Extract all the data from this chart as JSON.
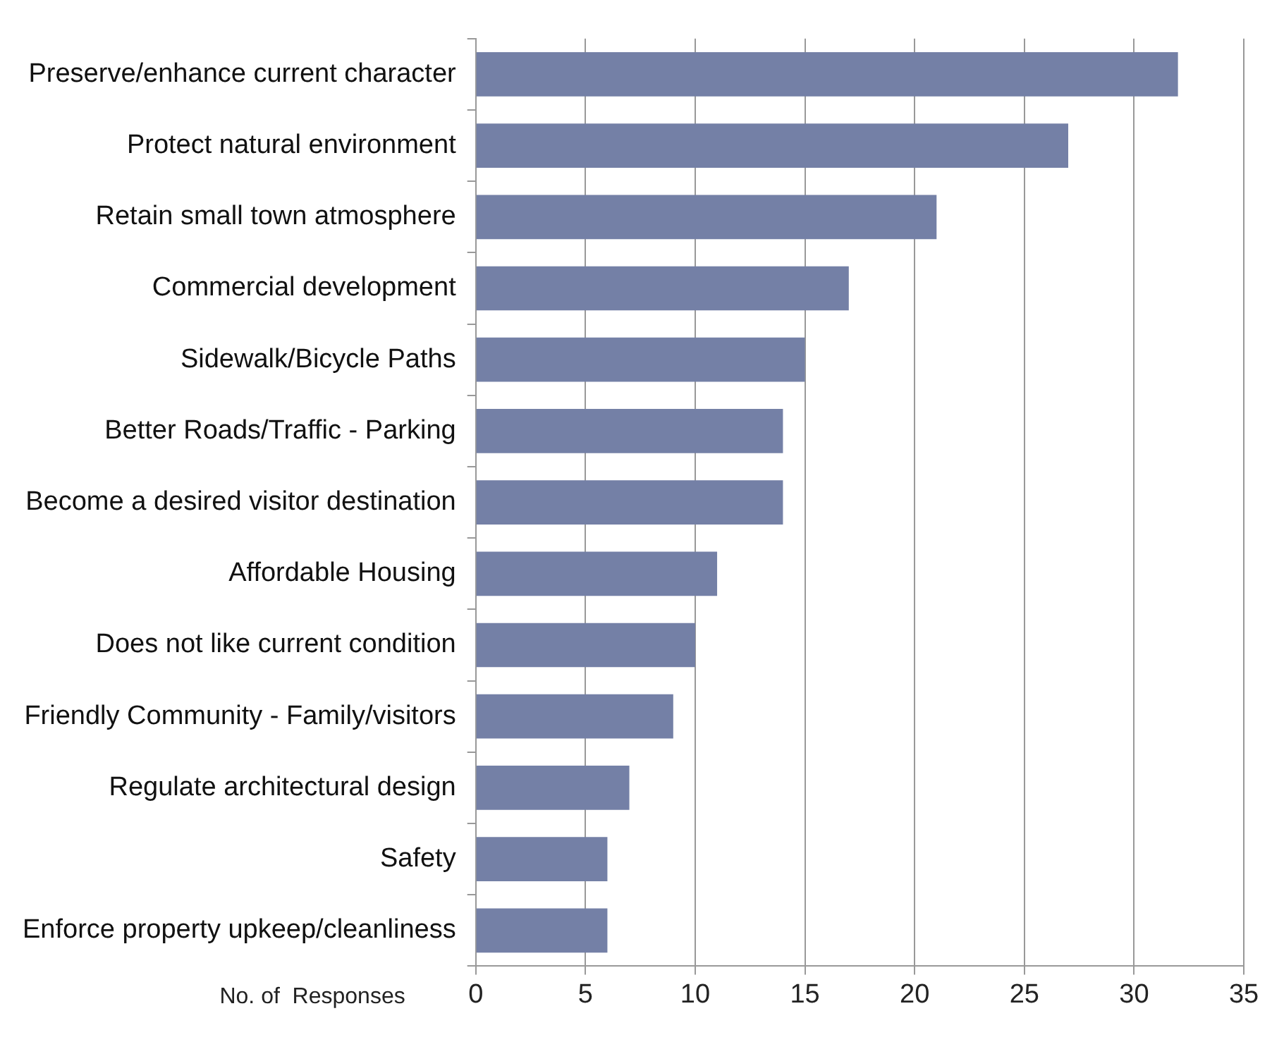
{
  "chart_data": {
    "type": "bar",
    "orientation": "horizontal",
    "xlabel": "No. of  Responses",
    "categories": [
      "Preserve/enhance current character",
      "Protect natural environment",
      "Retain small town atmosphere",
      "Commercial development",
      "Sidewalk/Bicycle Paths",
      "Better Roads/Traffic - Parking",
      "Become a desired visitor destination",
      "Affordable Housing",
      "Does not like current condition",
      "Friendly Community - Family/visitors",
      "Regulate architectural design",
      "Safety",
      "Enforce property upkeep/cleanliness"
    ],
    "values": [
      32,
      27,
      21,
      17,
      15,
      14,
      14,
      11,
      10,
      9,
      7,
      6,
      6
    ],
    "color": "#7480a6",
    "xlim": [
      0,
      35
    ],
    "xticks": [
      0,
      5,
      10,
      15,
      20,
      25,
      30,
      35
    ],
    "grid": "x",
    "legend": false
  }
}
